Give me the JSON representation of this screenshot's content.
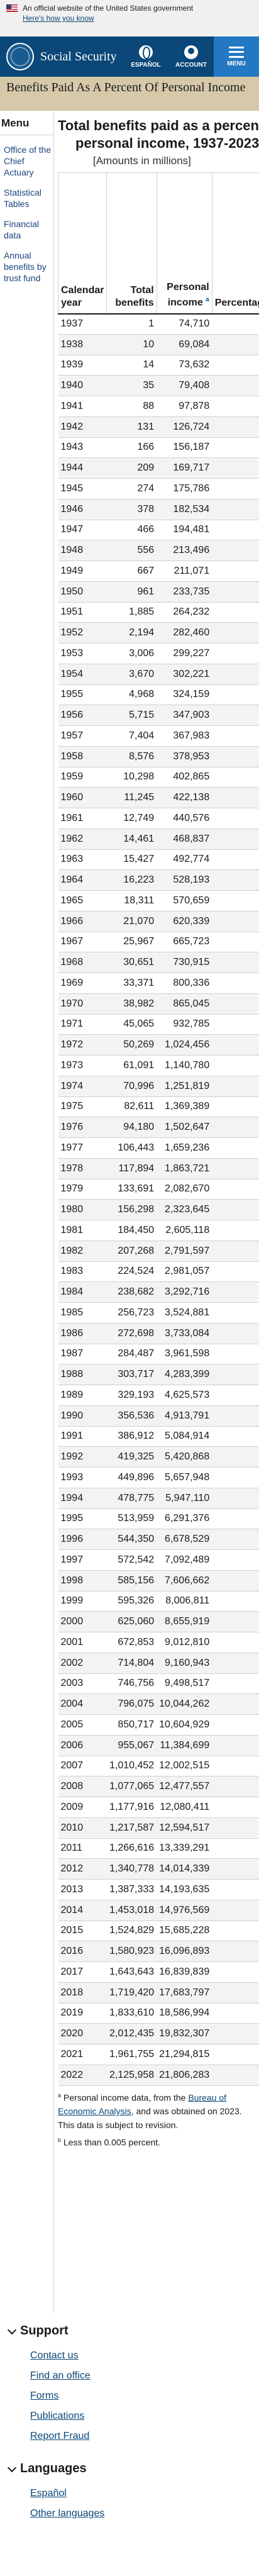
{
  "gov_banner": {
    "official": "An official website of the United States government",
    "how_link": "Here's how you know"
  },
  "header": {
    "brand": "Social Security",
    "espanol": "ESPAÑOL",
    "account": "ACCOUNT",
    "menu": "MENU"
  },
  "title_band": "Benefits Paid As A Percent Of Personal Income",
  "sidebar": {
    "heading": "Menu",
    "items": [
      "Office of the Chief Actuary",
      "Statistical Tables",
      "Financial data",
      "Annual benefits by trust fund"
    ]
  },
  "main": {
    "title_line1": "Total benefits paid as a percentage of",
    "title_line2": "personal income, 1937-2023",
    "subtitle": "[Amounts in millions]",
    "columns": [
      "Calendar year",
      "Total benefits",
      "Personal income",
      "Percentage"
    ],
    "footnote_a": "a",
    "rows": [
      [
        "1937",
        "1",
        "74,710"
      ],
      [
        "1938",
        "10",
        "69,084"
      ],
      [
        "1939",
        "14",
        "73,632"
      ],
      [
        "1940",
        "35",
        "79,408"
      ],
      [
        "1941",
        "88",
        "97,878"
      ],
      [
        "1942",
        "131",
        "126,724"
      ],
      [
        "1943",
        "166",
        "156,187"
      ],
      [
        "1944",
        "209",
        "169,717"
      ],
      [
        "1945",
        "274",
        "175,786"
      ],
      [
        "1946",
        "378",
        "182,534"
      ],
      [
        "1947",
        "466",
        "194,481"
      ],
      [
        "1948",
        "556",
        "213,496"
      ],
      [
        "1949",
        "667",
        "211,071"
      ],
      [
        "1950",
        "961",
        "233,735"
      ],
      [
        "1951",
        "1,885",
        "264,232"
      ],
      [
        "1952",
        "2,194",
        "282,460"
      ],
      [
        "1953",
        "3,006",
        "299,227"
      ],
      [
        "1954",
        "3,670",
        "302,221"
      ],
      [
        "1955",
        "4,968",
        "324,159"
      ],
      [
        "1956",
        "5,715",
        "347,903"
      ],
      [
        "1957",
        "7,404",
        "367,983"
      ],
      [
        "1958",
        "8,576",
        "378,953"
      ],
      [
        "1959",
        "10,298",
        "402,865"
      ],
      [
        "1960",
        "11,245",
        "422,138"
      ],
      [
        "1961",
        "12,749",
        "440,576"
      ],
      [
        "1962",
        "14,461",
        "468,837"
      ],
      [
        "1963",
        "15,427",
        "492,774"
      ],
      [
        "1964",
        "16,223",
        "528,193"
      ],
      [
        "1965",
        "18,311",
        "570,659"
      ],
      [
        "1966",
        "21,070",
        "620,339"
      ],
      [
        "1967",
        "25,967",
        "665,723"
      ],
      [
        "1968",
        "30,651",
        "730,915"
      ],
      [
        "1969",
        "33,371",
        "800,336"
      ],
      [
        "1970",
        "38,982",
        "865,045"
      ],
      [
        "1971",
        "45,065",
        "932,785"
      ],
      [
        "1972",
        "50,269",
        "1,024,456"
      ],
      [
        "1973",
        "61,091",
        "1,140,780"
      ],
      [
        "1974",
        "70,996",
        "1,251,819"
      ],
      [
        "1975",
        "82,611",
        "1,369,389"
      ],
      [
        "1976",
        "94,180",
        "1,502,647"
      ],
      [
        "1977",
        "106,443",
        "1,659,236"
      ],
      [
        "1978",
        "117,894",
        "1,863,721"
      ],
      [
        "1979",
        "133,691",
        "2,082,670"
      ],
      [
        "1980",
        "156,298",
        "2,323,645"
      ],
      [
        "1981",
        "184,450",
        "2,605,118"
      ],
      [
        "1982",
        "207,268",
        "2,791,597"
      ],
      [
        "1983",
        "224,524",
        "2,981,057"
      ],
      [
        "1984",
        "238,682",
        "3,292,716"
      ],
      [
        "1985",
        "256,723",
        "3,524,881"
      ],
      [
        "1986",
        "272,698",
        "3,733,084"
      ],
      [
        "1987",
        "284,487",
        "3,961,598"
      ],
      [
        "1988",
        "303,717",
        "4,283,399"
      ],
      [
        "1989",
        "329,193",
        "4,625,573"
      ],
      [
        "1990",
        "356,536",
        "4,913,791"
      ],
      [
        "1991",
        "386,912",
        "5,084,914"
      ],
      [
        "1992",
        "419,325",
        "5,420,868"
      ],
      [
        "1993",
        "449,896",
        "5,657,948"
      ],
      [
        "1994",
        "478,775",
        "5,947,110"
      ],
      [
        "1995",
        "513,959",
        "6,291,376"
      ],
      [
        "1996",
        "544,350",
        "6,678,529"
      ],
      [
        "1997",
        "572,542",
        "7,092,489"
      ],
      [
        "1998",
        "585,156",
        "7,606,662"
      ],
      [
        "1999",
        "595,326",
        "8,006,811"
      ],
      [
        "2000",
        "625,060",
        "8,655,919"
      ],
      [
        "2001",
        "672,853",
        "9,012,810"
      ],
      [
        "2002",
        "714,804",
        "9,160,943"
      ],
      [
        "2003",
        "746,756",
        "9,498,517"
      ],
      [
        "2004",
        "796,075",
        "10,044,262"
      ],
      [
        "2005",
        "850,717",
        "10,604,929"
      ],
      [
        "2006",
        "955,067",
        "11,384,699"
      ],
      [
        "2007",
        "1,010,452",
        "12,002,515"
      ],
      [
        "2008",
        "1,077,065",
        "12,477,557"
      ],
      [
        "2009",
        "1,177,916",
        "12,080,411"
      ],
      [
        "2010",
        "1,217,587",
        "12,594,517"
      ],
      [
        "2011",
        "1,266,616",
        "13,339,291"
      ],
      [
        "2012",
        "1,340,778",
        "14,014,339"
      ],
      [
        "2013",
        "1,387,333",
        "14,193,635"
      ],
      [
        "2014",
        "1,453,018",
        "14,976,569"
      ],
      [
        "2015",
        "1,524,829",
        "15,685,228"
      ],
      [
        "2016",
        "1,580,923",
        "16,096,893"
      ],
      [
        "2017",
        "1,643,643",
        "16,839,839"
      ],
      [
        "2018",
        "1,719,420",
        "17,683,797"
      ],
      [
        "2019",
        "1,833,610",
        "18,586,994"
      ],
      [
        "2020",
        "2,012,435",
        "19,832,307"
      ],
      [
        "2021",
        "1,961,755",
        "21,294,815"
      ],
      [
        "2022",
        "2,125,958",
        "21,806,283"
      ]
    ],
    "notes": {
      "a_marker": "a",
      "a_text": "Personal income data, from the",
      "a_link": "Bureau of Economic Analysis",
      "a_text2": ", and was obtained on 2023. This data is subject to revision.",
      "b_marker": "b",
      "b_text": "Less than 0.005 percent."
    }
  },
  "footer": {
    "support_heading": "Support",
    "support_links": [
      "Contact us",
      "Find an office",
      "Forms",
      "Publications",
      "Report Fraud"
    ],
    "languages_heading": "Languages",
    "language_links": [
      "Español",
      "Other languages"
    ]
  }
}
